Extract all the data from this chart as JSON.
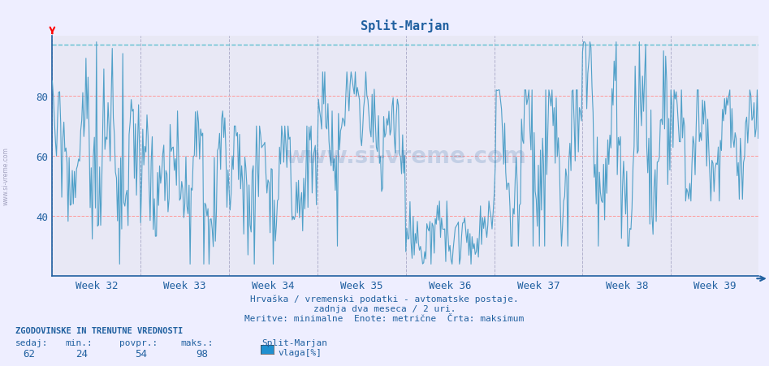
{
  "title": "Split-Marjan",
  "bg_color": "#eeeeff",
  "plot_bg_color": "#e8e8f5",
  "line_color": "#50a0c8",
  "axis_color": "#2060a0",
  "grid_color_h": "#ff9999",
  "grid_color_v": "#b0b0cc",
  "top_dashed_color": "#60c0d0",
  "ylim": [
    20,
    100
  ],
  "yticks": [
    40,
    60,
    80
  ],
  "week_labels": [
    "Week 32",
    "Week 33",
    "Week 34",
    "Week 35",
    "Week 36",
    "Week 37",
    "Week 38",
    "Week 39"
  ],
  "footer_line1": "Hrvaška / vremenski podatki - avtomatske postaje.",
  "footer_line2": "zadnja dva meseca / 2 uri.",
  "footer_line3": "Meritve: minimalne  Enote: metrične  Črta: maksimum",
  "legend_title": "ZGODOVINSKE IN TRENUTNE VREDNOSTI",
  "legend_sedaj": "62",
  "legend_min": "24",
  "legend_povpr": "54",
  "legend_maks": "98",
  "legend_station": "Split-Marjan",
  "legend_var": "vlaga[%]",
  "legend_color": "#2090d0",
  "watermark": "www.si-vreme.com",
  "n_points": 672,
  "figsize": [
    9.47,
    4.52
  ],
  "dpi": 100
}
